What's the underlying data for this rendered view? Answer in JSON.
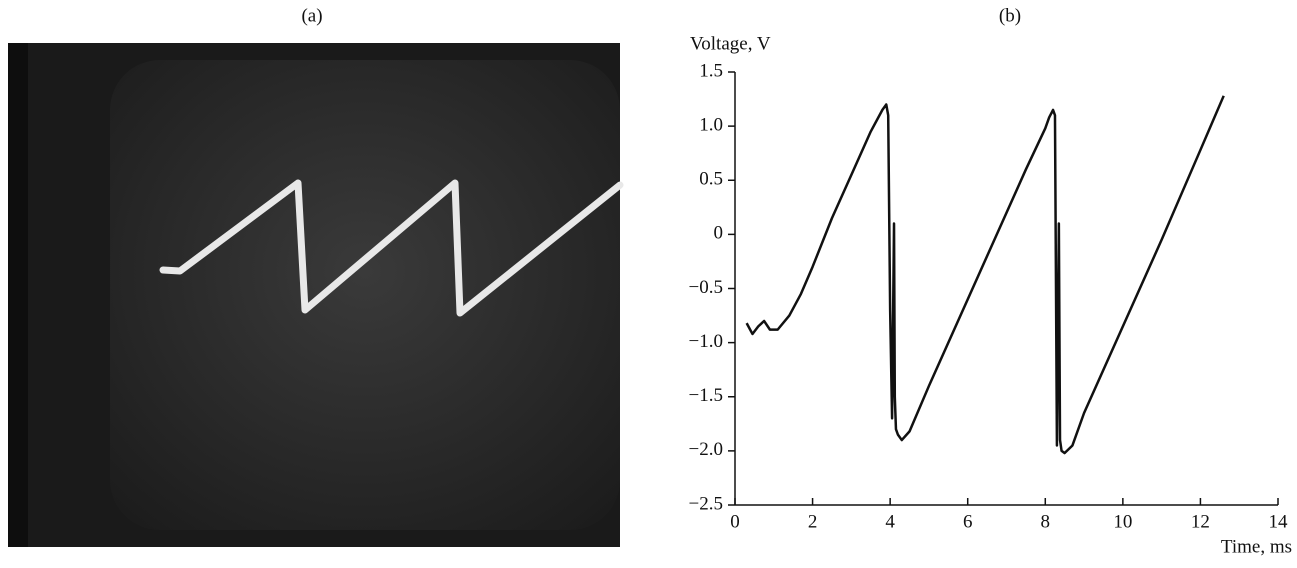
{
  "panel_a": {
    "label": "(a)"
  },
  "chart_data": {
    "type": "line",
    "title": "(b)",
    "ylabel": "Voltage, V",
    "xlabel": "Time, ms",
    "color": "#111111",
    "x": [
      0.3,
      0.45,
      0.6,
      0.75,
      0.9,
      1.1,
      1.4,
      1.7,
      2.0,
      2.5,
      3.0,
      3.5,
      3.8,
      3.9,
      3.95,
      4.0,
      4.05,
      4.1,
      4.12,
      4.15,
      4.2,
      4.3,
      4.5,
      5.0,
      6.0,
      7.0,
      7.5,
      8.0,
      8.1,
      8.2,
      8.25,
      8.3,
      8.35,
      8.38,
      8.42,
      8.5,
      8.7,
      9.0,
      10.0,
      11.0,
      12.0,
      12.6
    ],
    "values": [
      -0.82,
      -0.92,
      -0.85,
      -0.8,
      -0.88,
      -0.88,
      -0.75,
      -0.55,
      -0.3,
      0.15,
      0.55,
      0.95,
      1.15,
      1.2,
      1.1,
      -0.7,
      -1.7,
      0.1,
      -1.5,
      -1.8,
      -1.85,
      -1.9,
      -1.82,
      -1.4,
      -0.6,
      0.2,
      0.6,
      0.98,
      1.08,
      1.15,
      1.1,
      -1.95,
      0.1,
      -1.9,
      -2.0,
      -2.02,
      -1.95,
      -1.65,
      -0.85,
      -0.05,
      0.78,
      1.28
    ],
    "xlim": [
      0,
      14
    ],
    "xticks": [
      0,
      2,
      4,
      6,
      8,
      10,
      12,
      14
    ],
    "ylim": [
      -2.5,
      1.5
    ],
    "yticks": [
      {
        "value": -2.5,
        "label": "−2.5"
      },
      {
        "value": -2,
        "label": "−2.0"
      },
      {
        "value": -1.5,
        "label": "−1.5"
      },
      {
        "value": -1,
        "label": "−1.0"
      },
      {
        "value": -0.5,
        "label": "−0.5"
      },
      0,
      0.5,
      {
        "value": 1,
        "label": "1.0"
      },
      1.5
    ]
  }
}
